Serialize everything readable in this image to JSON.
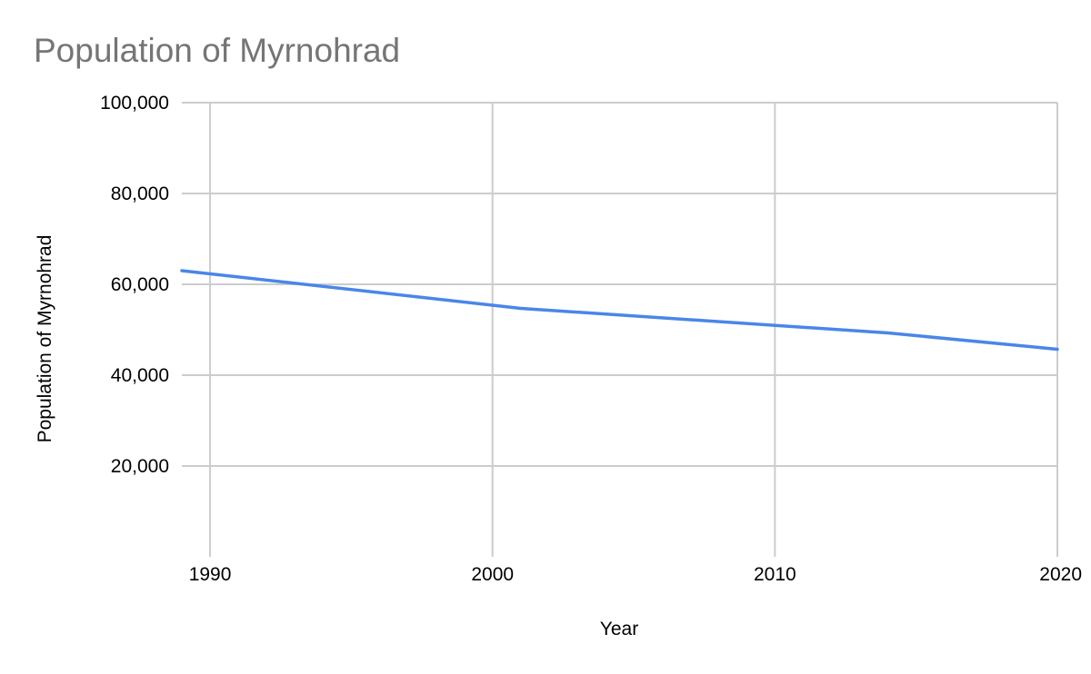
{
  "chart_data": {
    "type": "line",
    "title": "Population of Myrnohrad",
    "xlabel": "Year",
    "ylabel": "Population of Myrnohrad",
    "xlim": [
      1989,
      2020
    ],
    "ylim": [
      0,
      100000
    ],
    "x_ticks": [
      1990,
      2000,
      2010,
      2020
    ],
    "x_tick_labels": [
      "1990",
      "2000",
      "2010",
      "2020"
    ],
    "y_ticks": [
      20000,
      40000,
      60000,
      80000,
      100000
    ],
    "y_tick_labels": [
      "20,000",
      "40,000",
      "60,000",
      "80,000",
      "100,000"
    ],
    "grid": true,
    "legend": "none",
    "series": [
      {
        "name": "Population of Myrnohrad",
        "color": "#4a86e8",
        "x": [
          1989,
          2001,
          2014,
          2020
        ],
        "values": [
          63000,
          54700,
          49300,
          45700
        ]
      }
    ]
  }
}
